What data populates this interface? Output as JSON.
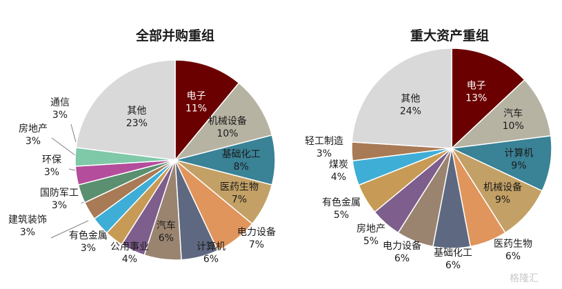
{
  "watermark": "格隆汇",
  "chart_data": [
    {
      "type": "pie",
      "title": "全部并购重组",
      "slices": [
        {
          "name": "电子",
          "value": 11,
          "label": "11%",
          "color": "#6b0000"
        },
        {
          "name": "机械设备",
          "value": 10,
          "label": "10%",
          "color": "#b7b3a3"
        },
        {
          "name": "基础化工",
          "value": 8,
          "label": "8%",
          "color": "#3a8296"
        },
        {
          "name": "医药生物",
          "value": 7,
          "label": "7%",
          "color": "#c3a065"
        },
        {
          "name": "电力设备",
          "value": 7,
          "label": "7%",
          "color": "#e0955c"
        },
        {
          "name": "计算机",
          "value": 6,
          "label": "6%",
          "color": "#5e6880"
        },
        {
          "name": "汽车",
          "value": 6,
          "label": "6%",
          "color": "#9a8470"
        },
        {
          "name": "公用事业",
          "value": 4,
          "label": "4%",
          "color": "#7d5e8c"
        },
        {
          "name": "有色金属",
          "value": 3,
          "label": "3%",
          "color": "#c79a55"
        },
        {
          "name": "建筑装饰",
          "value": 3,
          "label": "3%",
          "color": "#3faed6"
        },
        {
          "name": "国防军工",
          "value": 3,
          "label": "3%",
          "color": "#a87a55"
        },
        {
          "name": "环保",
          "value": 3,
          "label": "3%",
          "color": "#5a9070"
        },
        {
          "name": "房地产",
          "value": 3,
          "label": "3%",
          "color": "#b34d9c"
        },
        {
          "name": "通信",
          "value": 3,
          "label": "3%",
          "color": "#7fc8a8"
        },
        {
          "name": "其他",
          "value": 23,
          "label": "23%",
          "color": "#d9d9d9"
        }
      ]
    },
    {
      "type": "pie",
      "title": "重大资产重组",
      "slices": [
        {
          "name": "电子",
          "value": 13,
          "label": "13%",
          "color": "#6b0000"
        },
        {
          "name": "汽车",
          "value": 10,
          "label": "10%",
          "color": "#b7b3a3"
        },
        {
          "name": "计算机",
          "value": 9,
          "label": "9%",
          "color": "#3a8296"
        },
        {
          "name": "机械设备",
          "value": 9,
          "label": "9%",
          "color": "#c3a065"
        },
        {
          "name": "医药生物",
          "value": 6,
          "label": "6%",
          "color": "#e0955c"
        },
        {
          "name": "基础化工",
          "value": 6,
          "label": "6%",
          "color": "#5e6880"
        },
        {
          "name": "电力设备",
          "value": 6,
          "label": "6%",
          "color": "#9a8470"
        },
        {
          "name": "房地产",
          "value": 5,
          "label": "5%",
          "color": "#7d5e8c"
        },
        {
          "name": "有色金属",
          "value": 5,
          "label": "5%",
          "color": "#c79a55"
        },
        {
          "name": "煤炭",
          "value": 4,
          "label": "4%",
          "color": "#3faed6"
        },
        {
          "name": "轻工制造",
          "value": 3,
          "label": "3%",
          "color": "#a87a55"
        },
        {
          "name": "其他",
          "value": 24,
          "label": "24%",
          "color": "#d9d9d9"
        }
      ]
    }
  ]
}
